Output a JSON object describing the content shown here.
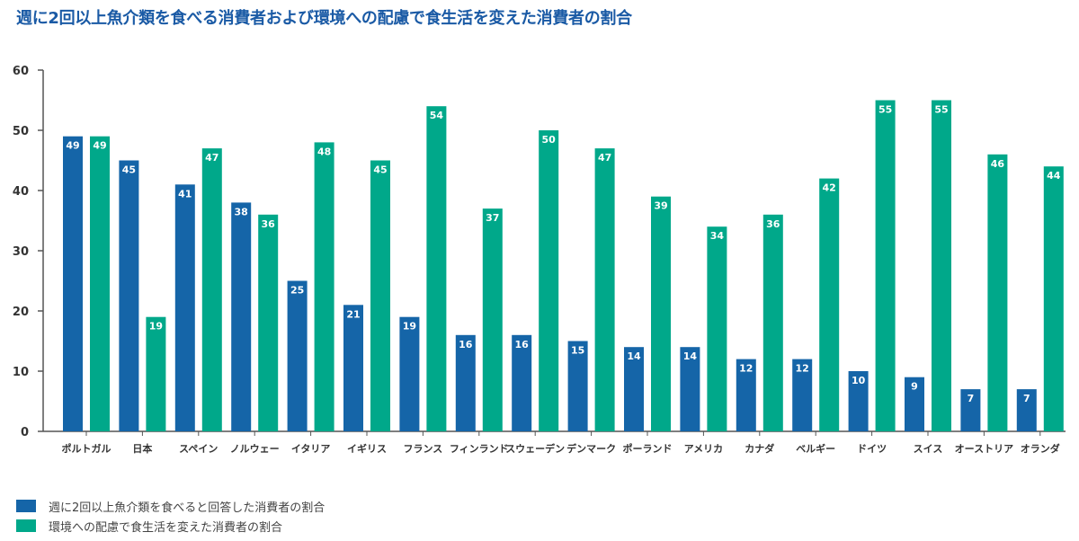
{
  "chart_data": {
    "type": "bar",
    "title": "週に2回以上魚介類を食べる消費者および環境への配慮で食生活を変えた消費者の割合",
    "xlabel": "",
    "ylabel": "",
    "ylim": [
      0,
      60
    ],
    "yticks": [
      0,
      10,
      20,
      30,
      40,
      50,
      60
    ],
    "categories": [
      "ポルトガル",
      "日本",
      "スペイン",
      "ノルウェー",
      "イタリア",
      "イギリス",
      "フランス",
      "フィンランド",
      "スウェーデン",
      "デンマーク",
      "ポーランド",
      "アメリカ",
      "カナダ",
      "ベルギー",
      "ドイツ",
      "スイス",
      "オーストリア",
      "オランダ"
    ],
    "series": [
      {
        "name": "週に2回以上魚介類を食べると回答した消費者の割合",
        "color": "#1565a8",
        "values": [
          49,
          45,
          41,
          38,
          25,
          21,
          19,
          16,
          16,
          15,
          14,
          14,
          12,
          12,
          10,
          9,
          7,
          7
        ]
      },
      {
        "name": "環境への配慮で食生活を変えた消費者の割合",
        "color": "#00a88a",
        "values": [
          49,
          19,
          47,
          36,
          48,
          45,
          54,
          37,
          50,
          47,
          39,
          34,
          36,
          42,
          55,
          55,
          46,
          44
        ]
      }
    ],
    "legend_position": "bottom-left",
    "grid": false
  }
}
